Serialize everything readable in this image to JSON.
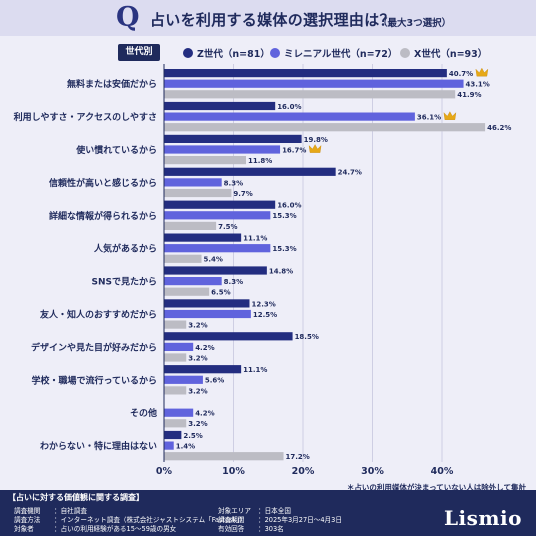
{
  "header": {
    "q_mark": "Q",
    "title": "占いを利用する媒体の選択理由は？",
    "subtitle": "（最大3つ選択）"
  },
  "legend": {
    "tag": "世代別",
    "items": [
      {
        "label": "Z世代（n=81）",
        "color": "#232d80"
      },
      {
        "label": "ミレニアル世代（n=72）",
        "color": "#6063dd"
      },
      {
        "label": "X世代（n=93）",
        "color": "#bcbcc4"
      }
    ]
  },
  "chart_data": {
    "type": "bar",
    "orientation": "horizontal",
    "categories": [
      "無料または安価だから",
      "利用しやすさ・アクセスのしやすさ",
      "使い慣れているから",
      "信頼性が高いと感じるから",
      "詳細な情報が得られるから",
      "人気があるから",
      "SNSで見たから",
      "友人・知人のおすすめだから",
      "デザインや見た目が好みだから",
      "学校・職場で流行っているから",
      "その他",
      "わからない・特に理由はない"
    ],
    "series": [
      {
        "name": "Z世代（n=81）",
        "color": "#232d80",
        "values": [
          40.7,
          16.0,
          19.8,
          24.7,
          16.0,
          11.1,
          14.8,
          12.3,
          18.5,
          11.1,
          null,
          2.5
        ],
        "labels": [
          "40.7%",
          "16.0%",
          "19.8%",
          "24.7%",
          "16.0%",
          "11.1%",
          "14.8%",
          "12.3%",
          "18.5%",
          "11.1%",
          "",
          "2.5%"
        ]
      },
      {
        "name": "ミレニアル世代（n=72）",
        "color": "#6063dd",
        "values": [
          43.1,
          36.1,
          16.7,
          8.3,
          15.3,
          15.3,
          8.3,
          12.5,
          4.2,
          5.6,
          4.2,
          1.4
        ],
        "labels": [
          "43.1%",
          "36.1%",
          "16.7%",
          "8.3%",
          "15.3%",
          "15.3%",
          "8.3%",
          "12.5%",
          "4.2%",
          "5.6%",
          "4.2%",
          "1.4%"
        ]
      },
      {
        "name": "X世代（n=93）",
        "color": "#bcbcc4",
        "values": [
          41.9,
          46.2,
          11.8,
          9.7,
          7.5,
          5.4,
          6.5,
          3.2,
          3.2,
          3.2,
          3.2,
          17.2
        ],
        "labels": [
          "41.9%",
          "46.2%",
          "11.8%",
          "9.7%",
          "7.5%",
          "5.4%",
          "6.5%",
          "3.2%",
          "3.2%",
          "3.2%",
          "3.2%",
          "17.2%"
        ]
      }
    ],
    "crowned": [
      [
        0,
        0
      ],
      [
        1,
        1
      ],
      [
        2,
        1
      ]
    ],
    "xlim": [
      0,
      50
    ],
    "xticks": [
      0,
      10,
      20,
      30,
      40
    ],
    "xtick_labels": [
      "0%",
      "10%",
      "20%",
      "30%",
      "40%"
    ],
    "grid": true,
    "legend_position": "top"
  },
  "footnote": "＊占いの利用媒体が決まっていない人は除外して集計",
  "footer": {
    "title": "【占いに対する価値観に関する調査】",
    "rows": [
      {
        "label": "調査機関",
        "value": "：自社調査"
      },
      {
        "label": "調査方法",
        "value": "：インターネット調査（株式会社ジャストシステム「Fastask」）"
      },
      {
        "label": "対象者",
        "value": "：占いの利用経験がある15～59歳の男女"
      },
      {
        "label": "対象エリア",
        "value": "：日本全国"
      },
      {
        "label": "調査期間",
        "value": "：2025年3月27日～4月3日"
      },
      {
        "label": "有効回答",
        "value": "：303名"
      }
    ],
    "logo": "Lismio"
  }
}
